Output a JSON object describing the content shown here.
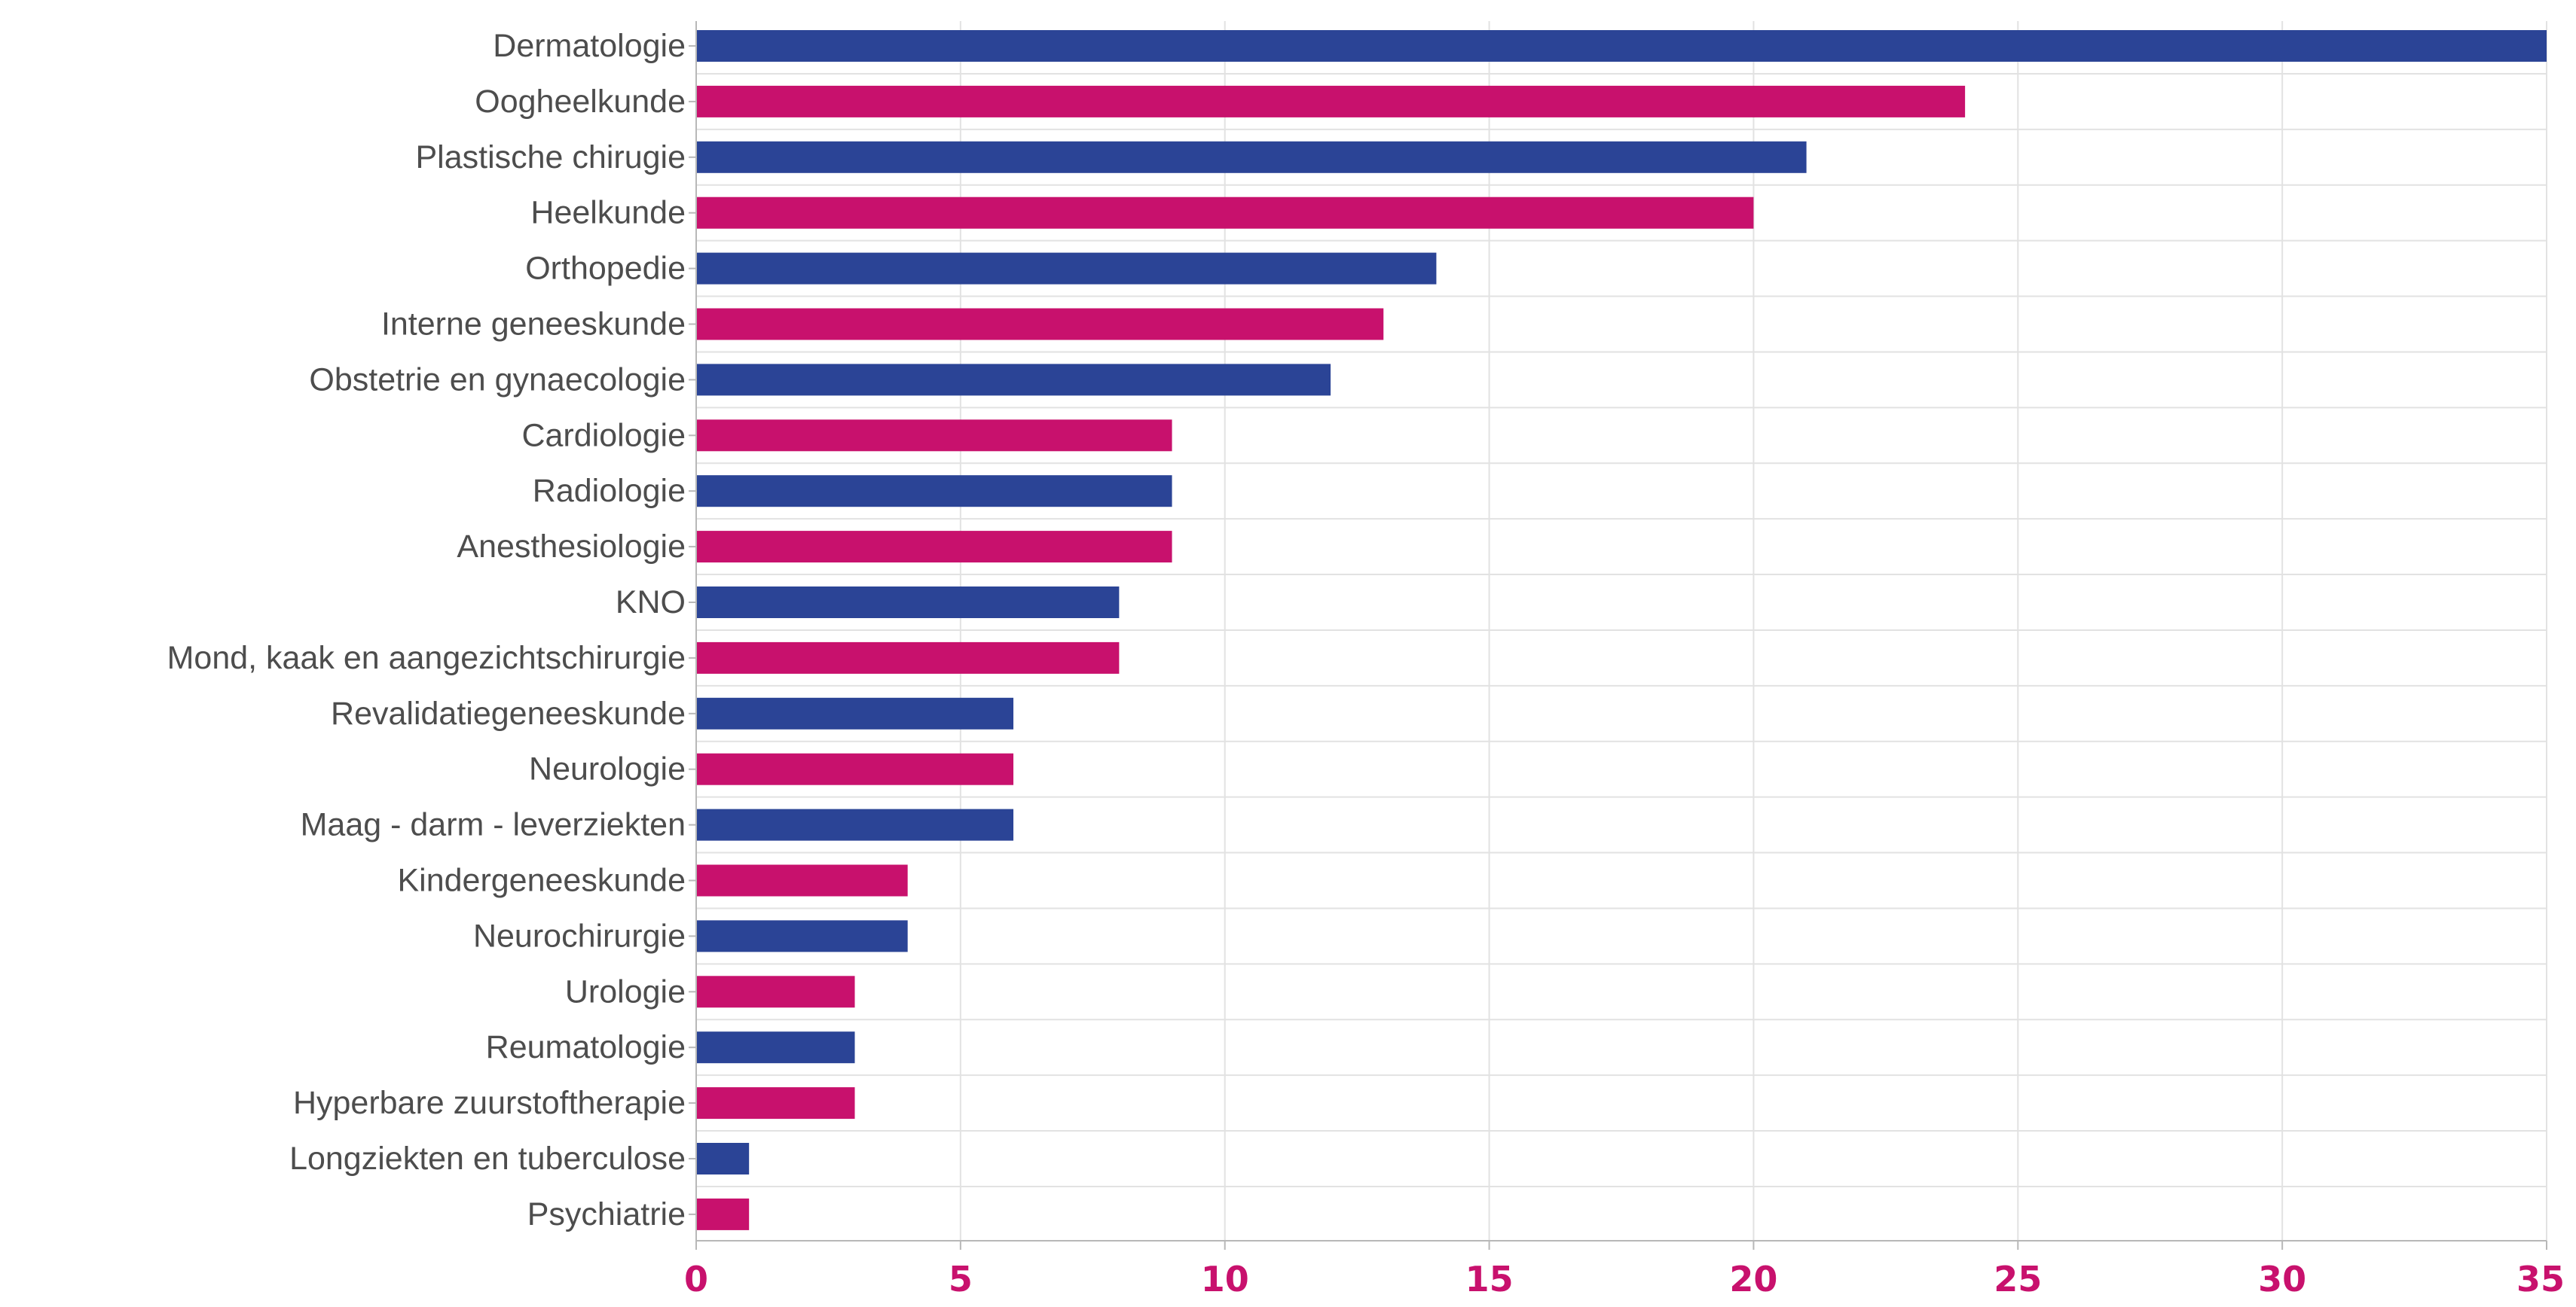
{
  "chart_data": {
    "type": "bar",
    "orientation": "horizontal",
    "categories": [
      "Dermatologie",
      "Oogheelkunde",
      "Plastische chirugie",
      "Heelkunde",
      "Orthopedie",
      "Interne geneeskunde",
      "Obstetrie en gynaecologie",
      "Cardiologie",
      "Radiologie",
      "Anesthesiologie",
      "KNO",
      "Mond, kaak en aangezichtschirurgie",
      "Revalidatiegeneeskunde",
      "Neurologie",
      "Maag - darm - leverziekten",
      "Kindergeneeskunde",
      "Neurochirurgie",
      "Urologie",
      "Reumatologie",
      "Hyperbare zuurstoftherapie",
      "Longziekten en tuberculose",
      "Psychiatrie"
    ],
    "values": [
      35,
      24,
      21,
      20,
      14,
      13,
      12,
      9,
      9,
      9,
      8,
      8,
      6,
      6,
      6,
      4,
      4,
      3,
      3,
      3,
      1,
      1
    ],
    "bar_colors": [
      "#2b4496",
      "#c8116d"
    ],
    "color_pattern": "alternating",
    "x_ticks": [
      0,
      5,
      10,
      15,
      20,
      25,
      30,
      35
    ],
    "x_tick_labels": [
      "0",
      "5",
      "10",
      "15",
      "20",
      "25",
      "30",
      "35"
    ],
    "xlim": [
      0,
      35
    ],
    "title": "",
    "xlabel": "",
    "ylabel": "",
    "grid": true,
    "tick_label_color": "#c8116d",
    "category_label_color": "#4d4d4d",
    "grid_color": "#e2e2e2",
    "axis_color": "#b8b8b8"
  }
}
